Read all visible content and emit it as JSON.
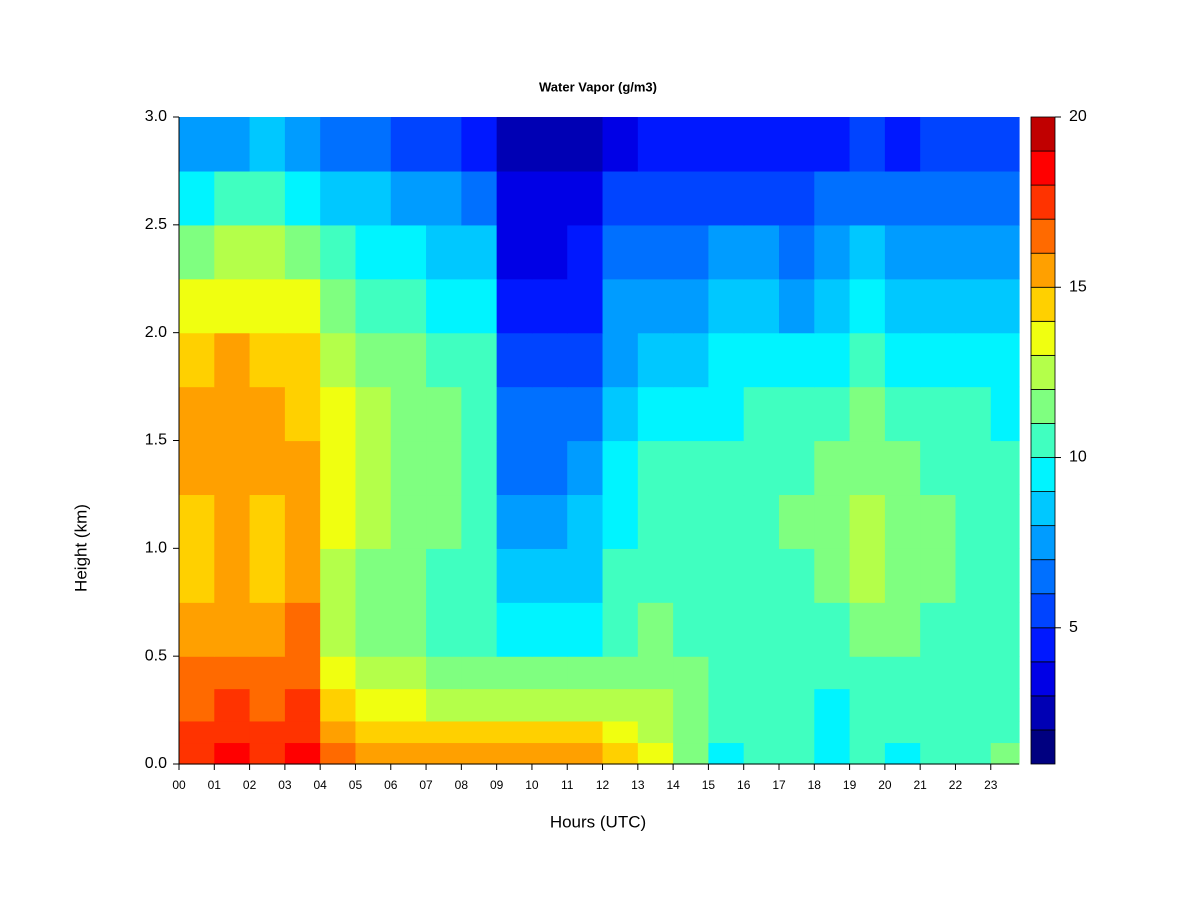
{
  "chart_data": {
    "type": "heatmap",
    "title": "Water Vapor (g/m3)",
    "x_label": "Hours (UTC)",
    "y_label": "Height (km)",
    "xlim": [
      0,
      23.8
    ],
    "ylim": [
      0,
      3
    ],
    "xticks": [
      {
        "value": 0,
        "label": "00"
      },
      {
        "value": 1,
        "label": "01"
      },
      {
        "value": 2,
        "label": "02"
      },
      {
        "value": 3,
        "label": "03"
      },
      {
        "value": 4,
        "label": "04"
      },
      {
        "value": 5,
        "label": "05"
      },
      {
        "value": 6,
        "label": "06"
      },
      {
        "value": 7,
        "label": "07"
      },
      {
        "value": 8,
        "label": "08"
      },
      {
        "value": 9,
        "label": "09"
      },
      10,
      11,
      12,
      13,
      14,
      15,
      16,
      17,
      18,
      19,
      20,
      21,
      22,
      23
    ],
    "yticks": [
      {
        "value": 0,
        "label": "0.0"
      },
      0.5,
      {
        "value": 1,
        "label": "1.0"
      },
      1.5,
      {
        "value": 2,
        "label": "2.0"
      },
      2.5,
      {
        "value": 3,
        "label": "3.0"
      }
    ],
    "x": [
      0,
      1,
      2,
      3,
      4,
      5,
      6,
      7,
      8,
      9,
      10,
      11,
      12,
      13,
      14,
      15,
      16,
      17,
      18,
      19,
      20,
      21,
      22,
      23
    ],
    "y": [
      0,
      0.1,
      0.2,
      0.35,
      0.5,
      0.75,
      1.0,
      1.25,
      1.5,
      1.75,
      2.0,
      2.25,
      2.5,
      2.75
    ],
    "z": [
      [
        17.5,
        18,
        17.5,
        18,
        16.5,
        15.5,
        15,
        15,
        15,
        15.5,
        15.5,
        15,
        14.5,
        13,
        11.5,
        9.5,
        10.5,
        10,
        9.5,
        10,
        9.5,
        10.5,
        10.5,
        11
      ],
      [
        17,
        17.5,
        17,
        17.5,
        15.5,
        14.5,
        14,
        14,
        14,
        14.5,
        14.5,
        14,
        13.5,
        12.5,
        11.5,
        10,
        10.5,
        10,
        9.5,
        10,
        10,
        10.5,
        10.5,
        10.5
      ],
      [
        16.5,
        17,
        16.5,
        17,
        14,
        13,
        13,
        12.5,
        12.5,
        12.5,
        12.5,
        12.5,
        12.5,
        12,
        11.5,
        10.5,
        10.5,
        10,
        9,
        10,
        10.5,
        10.5,
        10.5,
        10.5
      ],
      [
        16,
        16.5,
        16,
        16.5,
        13,
        12,
        12,
        11.5,
        11,
        11,
        11,
        11,
        11.5,
        11.5,
        11,
        10.5,
        10.5,
        10.5,
        10,
        10.5,
        10.5,
        10.5,
        10.5,
        10.5
      ],
      [
        15,
        15.5,
        15,
        16,
        12.5,
        11.5,
        11,
        10.5,
        10,
        9.5,
        9.5,
        9.5,
        10.5,
        11,
        10.5,
        10.5,
        10.5,
        10.5,
        10.5,
        11,
        11,
        10.5,
        10.5,
        10.5
      ],
      [
        14.5,
        15,
        14.5,
        15,
        12.5,
        11.5,
        11,
        10.5,
        10,
        8.5,
        8.5,
        8.5,
        10,
        10.5,
        10.5,
        10.5,
        10.5,
        10.5,
        11,
        12,
        11.5,
        11,
        10.5,
        10.5
      ],
      [
        14.5,
        15,
        14.5,
        15,
        13,
        12,
        11.5,
        11,
        10.5,
        7.5,
        7.5,
        8,
        9.5,
        10.5,
        10.5,
        10.5,
        10.5,
        11,
        11.5,
        12,
        11.5,
        11,
        10.5,
        10.5
      ],
      [
        15,
        15.5,
        15,
        15,
        13,
        12,
        11.5,
        11,
        10.5,
        6.5,
        6.5,
        7,
        9,
        10,
        10,
        10,
        10,
        10.5,
        11,
        11.5,
        11,
        10.5,
        10,
        10
      ],
      [
        15,
        15.5,
        15,
        14.5,
        13,
        12,
        11.5,
        11,
        10.5,
        6,
        6,
        6.5,
        8.5,
        9.5,
        9.5,
        9.5,
        10,
        10,
        10.5,
        11,
        10.5,
        10,
        10,
        9.5
      ],
      [
        14.5,
        15,
        14.5,
        14,
        12.5,
        11.5,
        11,
        10.5,
        10,
        5,
        5,
        5.5,
        7.5,
        8.5,
        8.5,
        9,
        9,
        9,
        9.5,
        10,
        9.5,
        9.5,
        9.5,
        9
      ],
      [
        13,
        13.5,
        13.5,
        13,
        11.5,
        10.5,
        10,
        9.5,
        9,
        4,
        4,
        4.5,
        7,
        7.5,
        7.5,
        8,
        8,
        7.5,
        8.5,
        9,
        8.5,
        8.5,
        8.5,
        8
      ],
      [
        11.5,
        12,
        12,
        11.5,
        10,
        9.5,
        9,
        8.5,
        8,
        3.5,
        3.5,
        4,
        6,
        6.5,
        6.5,
        7,
        7,
        6.5,
        7.5,
        8,
        7.5,
        7.5,
        7.5,
        7
      ],
      [
        9.5,
        10,
        10,
        9.5,
        8.5,
        8,
        7.5,
        7,
        6.5,
        3,
        3,
        3.5,
        5,
        5,
        5.5,
        5.5,
        5.5,
        5,
        6,
        6.5,
        6,
        6.5,
        6.5,
        6
      ],
      [
        7,
        7.5,
        8,
        7.5,
        6.5,
        6,
        5.5,
        5,
        4.5,
        2.5,
        2.5,
        2.5,
        3.5,
        4,
        4,
        4,
        4,
        4,
        4.5,
        5,
        4.5,
        5,
        5,
        5
      ]
    ],
    "colorbar": {
      "levels": [
        1,
        2,
        3,
        4,
        5,
        6,
        7,
        8,
        9,
        10,
        11,
        12,
        13,
        14,
        15,
        16,
        17,
        18,
        19,
        20
      ],
      "colors": [
        "#000080",
        "#0000B4",
        "#0000E6",
        "#0018FF",
        "#0044FF",
        "#0070FF",
        "#009CFF",
        "#00C8FF",
        "#00F4FF",
        "#40FFC0",
        "#7FFF80",
        "#B4FF4A",
        "#F0FF10",
        "#FFD000",
        "#FFA000",
        "#FF6A00",
        "#FF3300",
        "#FF0000",
        "#C00000",
        "#800000"
      ],
      "ticks": [
        5,
        10,
        15,
        20
      ]
    }
  }
}
